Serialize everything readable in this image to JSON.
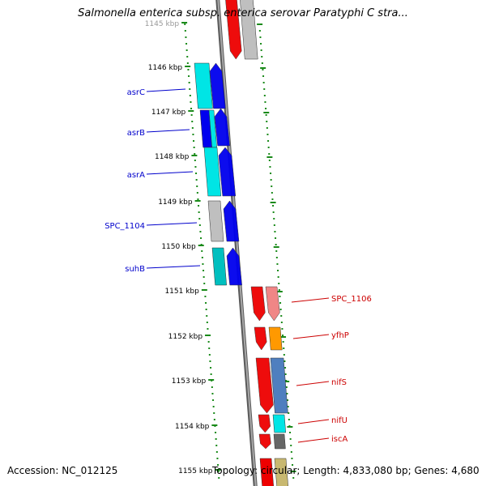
{
  "title": "Salmonella enterica subsp. enterica serovar Paratyphi C stra...",
  "accession": "Accession: NC_012125",
  "summary": "Topology: circular; Length: 4,833,080 bp; Genes: 4,680",
  "kbp_labels": [
    "1145 kbp",
    "1146 kbp",
    "1147 kbp",
    "1148 kbp",
    "1149 kbp",
    "1150 kbp",
    "1151 kbp",
    "1152 kbp",
    "1153 kbp",
    "1154 kbp",
    "1155 kbp"
  ],
  "genes_left": [
    {
      "name": "asrC",
      "color": "#0000cc"
    },
    {
      "name": "asrB",
      "color": "#0000cc"
    },
    {
      "name": "asrA",
      "color": "#0000cc"
    },
    {
      "name": "SPC_1104",
      "color": "#0000cc"
    },
    {
      "name": "suhB",
      "color": "#0000cc"
    }
  ],
  "genes_right": [
    {
      "name": "SPC_1106",
      "color": "#cc0000"
    },
    {
      "name": "yfhP",
      "color": "#cc0000"
    },
    {
      "name": "nifS",
      "color": "#cc0000"
    },
    {
      "name": "nifU",
      "color": "#cc0000"
    },
    {
      "name": "iscA",
      "color": "#cc0000"
    }
  ],
  "colors": {
    "backbone": "#8c8c8c",
    "tick": "#1a8a1a",
    "forward_cds": "#0000ee",
    "reverse_cds": "#ee0000",
    "cyan": "#00e5e5",
    "teal": "#00bfbf",
    "gray": "#bfbfbf",
    "pink": "#f08080",
    "orange": "#ff9900",
    "steel": "#4f7fbf",
    "dark_gray": "#666666",
    "khaki": "#c8b870"
  }
}
